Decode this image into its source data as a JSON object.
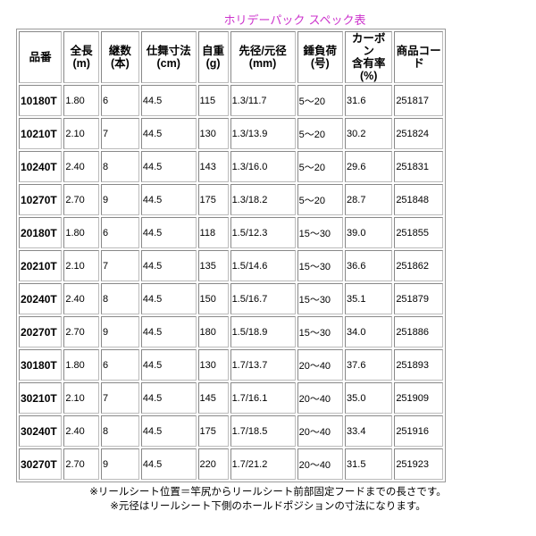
{
  "title": "ホリデーパック スペック表",
  "table": {
    "headers": [
      "品番",
      "全長\n(m)",
      "継数\n(本)",
      "仕舞寸法\n(cm)",
      "自重\n(g)",
      "先径/元径\n(mm)",
      "錘負荷\n(号)",
      "カーボン\n含有率\n(%)",
      "商品コー\nド"
    ],
    "rows": [
      [
        "10180T",
        "1.80",
        "6",
        "44.5",
        "115",
        "1.3/11.7",
        "5～20",
        "31.6",
        "251817"
      ],
      [
        "10210T",
        "2.10",
        "7",
        "44.5",
        "130",
        "1.3/13.9",
        "5～20",
        "30.2",
        "251824"
      ],
      [
        "10240T",
        "2.40",
        "8",
        "44.5",
        "143",
        "1.3/16.0",
        "5～20",
        "29.6",
        "251831"
      ],
      [
        "10270T",
        "2.70",
        "9",
        "44.5",
        "175",
        "1.3/18.2",
        "5～20",
        "28.7",
        "251848"
      ],
      [
        "20180T",
        "1.80",
        "6",
        "44.5",
        "118",
        "1.5/12.3",
        "15～30",
        "39.0",
        "251855"
      ],
      [
        "20210T",
        "2.10",
        "7",
        "44.5",
        "135",
        "1.5/14.6",
        "15～30",
        "36.6",
        "251862"
      ],
      [
        "20240T",
        "2.40",
        "8",
        "44.5",
        "150",
        "1.5/16.7",
        "15～30",
        "35.1",
        "251879"
      ],
      [
        "20270T",
        "2.70",
        "9",
        "44.5",
        "180",
        "1.5/18.9",
        "15～30",
        "34.0",
        "251886"
      ],
      [
        "30180T",
        "1.80",
        "6",
        "44.5",
        "130",
        "1.7/13.7",
        "20～40",
        "37.6",
        "251893"
      ],
      [
        "30210T",
        "2.10",
        "7",
        "44.5",
        "145",
        "1.7/16.1",
        "20～40",
        "35.0",
        "251909"
      ],
      [
        "30240T",
        "2.40",
        "8",
        "44.5",
        "175",
        "1.7/18.5",
        "20～40",
        "33.4",
        "251916"
      ],
      [
        "30270T",
        "2.70",
        "9",
        "44.5",
        "220",
        "1.7/21.2",
        "20～40",
        "31.5",
        "251923"
      ]
    ]
  },
  "notes": [
    "※リールシート位置＝竿尻からリールシート前部固定フードまでの長さです。",
    "※元径はリールシート下側のホールドポジションの寸法になります。"
  ],
  "colors": {
    "title": "#cc33cc",
    "border": "#888888"
  }
}
